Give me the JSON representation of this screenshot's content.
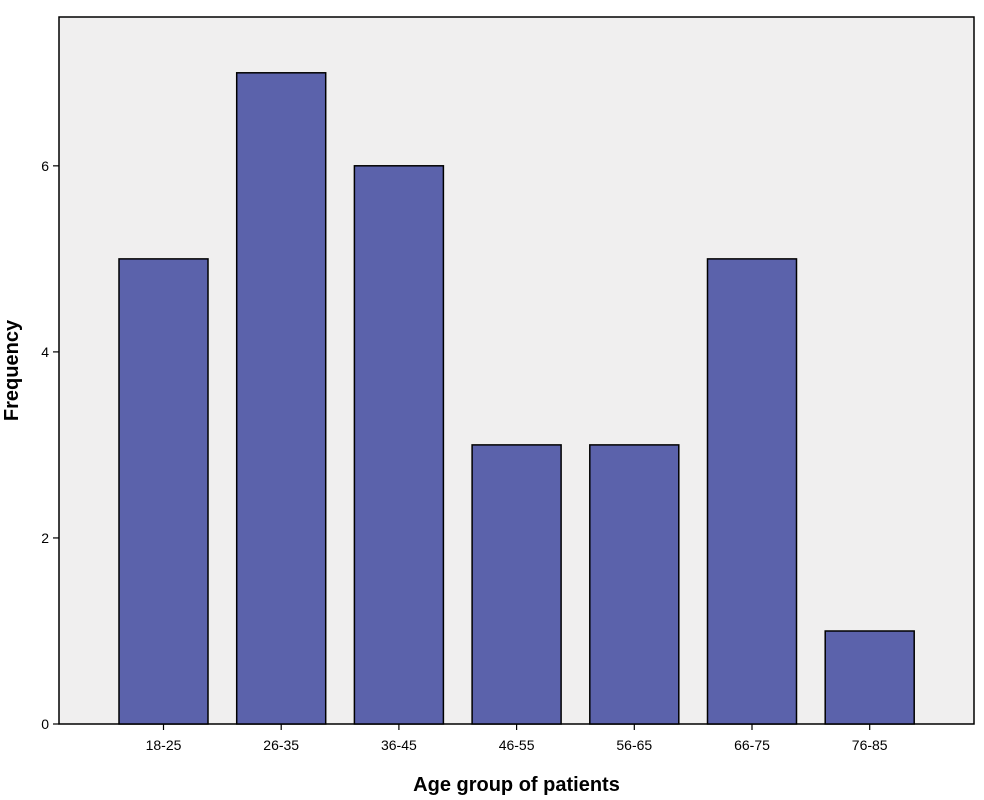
{
  "chart_data": {
    "type": "bar",
    "title": "",
    "xlabel": "Age group of patients",
    "ylabel": "Frequency",
    "categories": [
      "18-25",
      "26-35",
      "36-45",
      "46-55",
      "56-65",
      "66-75",
      "76-85"
    ],
    "values": [
      5,
      7,
      6,
      3,
      3,
      5,
      1
    ],
    "ylim": [
      0,
      7.6
    ],
    "yticks": [
      0,
      2,
      4,
      6
    ],
    "grid": false,
    "colors": {
      "bar_fill": "#5b62ab",
      "bar_stroke": "#000000",
      "plot_background": "#f0efef",
      "page_background": "#ffffff"
    }
  }
}
